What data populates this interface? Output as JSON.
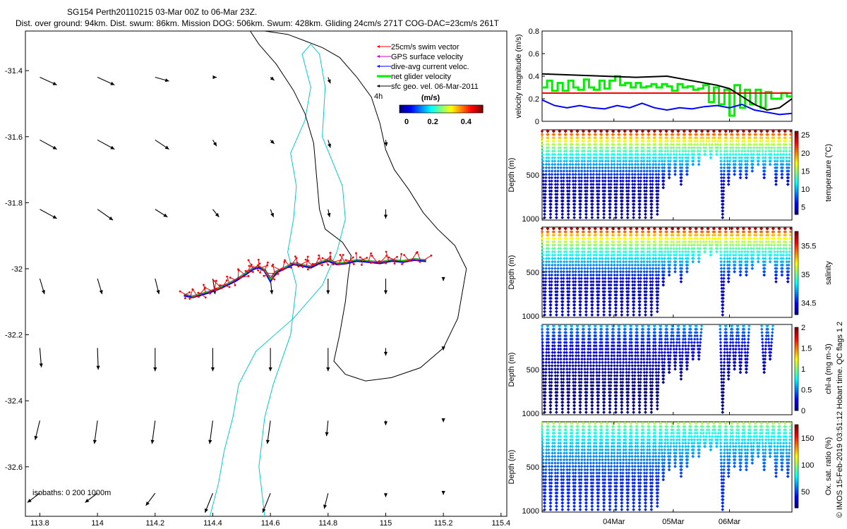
{
  "header": {
    "line1": "SG154 Perth20110215 03-Mar 00Z to 06-Mar 23Z.",
    "line2": "Dist. over ground: 94km. Dist. swum: 86km. Mission DOG: 506km. Swum: 428km. Gliding 24cm/s 271T COG-DAC=23cm/s 261T"
  },
  "credit": "© IMOS 15-Feb-2019 03:51:12 Hobart time. QC flags 1 2",
  "colors": {
    "swim": "#ff0000",
    "gps": "#cc00cc",
    "dac": "#0000ff",
    "net": "#00ee00",
    "geo": "#000000",
    "isobath_shelf": "#00cccc",
    "isobath_deep": "#000000",
    "line_magnitude_black": "#000000",
    "line_swim_red": "#ff0000"
  },
  "chart_data": [
    {
      "type": "scatter",
      "name": "track-map",
      "xlim": [
        113.75,
        115.42
      ],
      "ylim": [
        -32.75,
        -31.28
      ],
      "xticks": [
        113.8,
        114,
        114.2,
        114.4,
        114.6,
        114.8,
        115,
        115.2,
        115.4
      ],
      "xticklabels": [
        "113.8",
        "114",
        "114.2",
        "114.4",
        "114.6",
        "114.8",
        "115",
        "115.2",
        "115.4"
      ],
      "yticks": [
        -31.4,
        -31.6,
        -31.8,
        -32,
        -32.2,
        -32.4,
        -32.6
      ],
      "yticklabels": [
        "-31.4",
        "-31.6",
        "-31.8",
        "-32",
        "-32.2",
        "-32.4",
        "-32.6"
      ],
      "legend": {
        "placement": "top-right",
        "items": [
          "25cm/s swim vector",
          "GPS surface velocity",
          "dive-avg current veloc.",
          "net glider velocity",
          "sfc geo. vel. 06-Mar-2011"
        ],
        "extra_label": "4h"
      },
      "colorbar": {
        "title": "(m/s)",
        "range": [
          0,
          0.5
        ],
        "ticklabels": [
          "0",
          "0.2",
          "0.4"
        ]
      },
      "isobath_note": "isobaths: 0   200   1000m",
      "track": {
        "lon": [
          114.3,
          114.33,
          114.36,
          114.39,
          114.42,
          114.45,
          114.48,
          114.51,
          114.54,
          114.56,
          114.58,
          114.6,
          114.62,
          114.65,
          114.68,
          114.71,
          114.74,
          114.77,
          114.8,
          114.83,
          114.86,
          114.9,
          114.94,
          114.98,
          115.02,
          115.06,
          115.1,
          115.14
        ],
        "lat": [
          -32.08,
          -32.085,
          -32.078,
          -32.07,
          -32.06,
          -32.048,
          -32.035,
          -32.018,
          -32.0,
          -31.995,
          -32.005,
          -32.035,
          -32.01,
          -31.998,
          -31.985,
          -31.99,
          -31.995,
          -31.982,
          -31.975,
          -31.985,
          -31.983,
          -31.975,
          -31.978,
          -31.982,
          -31.975,
          -31.978,
          -31.972,
          -31.976
        ]
      },
      "geo_vectors": [
        {
          "lon": 113.8,
          "lat": -31.42,
          "u": 0.22,
          "v": -0.1
        },
        {
          "lon": 114.0,
          "lat": -31.42,
          "u": 0.22,
          "v": -0.1
        },
        {
          "lon": 114.2,
          "lat": -31.42,
          "u": 0.18,
          "v": -0.05
        },
        {
          "lon": 114.4,
          "lat": -31.42,
          "u": 0.05,
          "v": 0.0
        },
        {
          "lon": 114.6,
          "lat": -31.42,
          "u": 0.05,
          "v": -0.04
        },
        {
          "lon": 114.8,
          "lat": -31.42,
          "u": 0.03,
          "v": -0.08
        },
        {
          "lon": 113.8,
          "lat": -31.61,
          "u": 0.22,
          "v": -0.12
        },
        {
          "lon": 114.0,
          "lat": -31.61,
          "u": 0.22,
          "v": -0.12
        },
        {
          "lon": 114.2,
          "lat": -31.61,
          "u": 0.18,
          "v": -0.12
        },
        {
          "lon": 114.4,
          "lat": -31.61,
          "u": 0.05,
          "v": -0.08
        },
        {
          "lon": 114.6,
          "lat": -31.61,
          "u": 0.05,
          "v": -0.05
        },
        {
          "lon": 114.8,
          "lat": -31.61,
          "u": 0.03,
          "v": -0.1
        },
        {
          "lon": 115.0,
          "lat": -31.61,
          "u": 0.01,
          "v": -0.08
        },
        {
          "lon": 113.8,
          "lat": -31.82,
          "u": 0.22,
          "v": -0.12
        },
        {
          "lon": 114.0,
          "lat": -31.82,
          "u": 0.2,
          "v": -0.14
        },
        {
          "lon": 114.2,
          "lat": -31.82,
          "u": 0.16,
          "v": -0.1
        },
        {
          "lon": 114.4,
          "lat": -31.82,
          "u": 0.08,
          "v": -0.1
        },
        {
          "lon": 114.6,
          "lat": -31.82,
          "u": 0.04,
          "v": -0.1
        },
        {
          "lon": 114.8,
          "lat": -31.82,
          "u": 0.02,
          "v": -0.1
        },
        {
          "lon": 115.0,
          "lat": -31.82,
          "u": 0.0,
          "v": -0.12
        },
        {
          "lon": 113.8,
          "lat": -32.03,
          "u": 0.06,
          "v": -0.2
        },
        {
          "lon": 114.0,
          "lat": -32.03,
          "u": 0.06,
          "v": -0.2
        },
        {
          "lon": 114.2,
          "lat": -32.03,
          "u": 0.05,
          "v": -0.2
        },
        {
          "lon": 114.4,
          "lat": -32.03,
          "u": 0.03,
          "v": -0.2
        },
        {
          "lon": 114.6,
          "lat": -32.03,
          "u": 0.02,
          "v": -0.2
        },
        {
          "lon": 114.8,
          "lat": -32.03,
          "u": 0.0,
          "v": -0.2
        },
        {
          "lon": 115.0,
          "lat": -32.03,
          "u": 0.0,
          "v": -0.2
        },
        {
          "lon": 115.2,
          "lat": -32.03,
          "u": 0.0,
          "v": -0.03
        },
        {
          "lon": 113.8,
          "lat": -32.24,
          "u": 0.02,
          "v": -0.25
        },
        {
          "lon": 114.0,
          "lat": -32.24,
          "u": 0.01,
          "v": -0.28
        },
        {
          "lon": 114.2,
          "lat": -32.24,
          "u": 0.0,
          "v": -0.3
        },
        {
          "lon": 114.4,
          "lat": -32.24,
          "u": 0.0,
          "v": -0.3
        },
        {
          "lon": 114.6,
          "lat": -32.24,
          "u": 0.0,
          "v": -0.3
        },
        {
          "lon": 114.8,
          "lat": -32.24,
          "u": 0.0,
          "v": -0.3
        },
        {
          "lon": 115.0,
          "lat": -32.24,
          "u": 0.0,
          "v": -0.1
        },
        {
          "lon": 115.2,
          "lat": -32.24,
          "u": 0.0,
          "v": -0.03
        },
        {
          "lon": 113.8,
          "lat": -32.46,
          "u": -0.06,
          "v": -0.25
        },
        {
          "lon": 114.0,
          "lat": -32.46,
          "u": -0.04,
          "v": -0.3
        },
        {
          "lon": 114.2,
          "lat": -32.46,
          "u": -0.04,
          "v": -0.3
        },
        {
          "lon": 114.4,
          "lat": -32.46,
          "u": -0.04,
          "v": -0.3
        },
        {
          "lon": 114.6,
          "lat": -32.46,
          "u": -0.04,
          "v": -0.3
        },
        {
          "lon": 114.8,
          "lat": -32.46,
          "u": -0.02,
          "v": -0.2
        },
        {
          "lon": 115.0,
          "lat": -32.46,
          "u": 0.0,
          "v": -0.06
        },
        {
          "lon": 115.2,
          "lat": -32.46,
          "u": 0.0,
          "v": -0.02
        },
        {
          "lon": 113.8,
          "lat": -32.68,
          "u": -0.16,
          "v": -0.12
        },
        {
          "lon": 114.0,
          "lat": -32.68,
          "u": -0.16,
          "v": -0.12
        },
        {
          "lon": 114.2,
          "lat": -32.68,
          "u": -0.12,
          "v": -0.16
        },
        {
          "lon": 114.4,
          "lat": -32.68,
          "u": -0.1,
          "v": -0.25
        },
        {
          "lon": 114.6,
          "lat": -32.68,
          "u": -0.1,
          "v": -0.25
        },
        {
          "lon": 114.8,
          "lat": -32.68,
          "u": -0.05,
          "v": -0.2
        },
        {
          "lon": 115.0,
          "lat": -32.68,
          "u": 0.0,
          "v": -0.05
        },
        {
          "lon": 115.2,
          "lat": -32.68,
          "u": 0.0,
          "v": -0.02
        }
      ],
      "isobath_shelf": {
        "lon": [
          114.58,
          114.56,
          114.58,
          114.61,
          114.67,
          114.69,
          114.66,
          114.68,
          114.69,
          114.67,
          114.72,
          114.74,
          114.71,
          114.74,
          114.77,
          114.79,
          114.78,
          114.85,
          114.86,
          114.83,
          114.78,
          114.68,
          114.55,
          114.49,
          114.47,
          114.44,
          114.42,
          114.39
        ],
        "lat": [
          -32.75,
          -32.6,
          -32.45,
          -32.35,
          -32.2,
          -32.05,
          -31.95,
          -31.85,
          -31.75,
          -31.65,
          -31.55,
          -31.45,
          -31.35,
          -31.32,
          -31.35,
          -31.45,
          -31.6,
          -31.75,
          -31.85,
          -31.95,
          -32.05,
          -32.15,
          -32.25,
          -32.35,
          -32.45,
          -32.55,
          -32.65,
          -32.75
        ]
      },
      "isobath_deep": {
        "lon": [
          114.53,
          114.56,
          114.62,
          114.68,
          114.72,
          114.75,
          114.76,
          114.77,
          114.79,
          114.85,
          114.88,
          114.87,
          114.86,
          114.84,
          114.82,
          114.86,
          114.93,
          115.02,
          115.12,
          115.2,
          115.25,
          115.28,
          115.24,
          115.18,
          115.13,
          115.08,
          115.03,
          115.0,
          114.98,
          114.95,
          114.9,
          114.84,
          114.78,
          114.72,
          114.66,
          114.58,
          114.5
        ],
        "lat": [
          -31.28,
          -31.32,
          -31.38,
          -31.46,
          -31.53,
          -31.62,
          -31.72,
          -31.82,
          -31.88,
          -31.92,
          -31.96,
          -32.02,
          -32.1,
          -32.2,
          -32.28,
          -32.32,
          -32.34,
          -32.33,
          -32.3,
          -32.24,
          -32.15,
          -32.0,
          -31.93,
          -31.88,
          -31.83,
          -31.76,
          -31.7,
          -31.64,
          -31.56,
          -31.48,
          -31.42,
          -31.36,
          -31.33,
          -31.31,
          -31.29,
          -31.28,
          -31.28
        ]
      }
    },
    {
      "type": "line",
      "name": "velocity-magnitude",
      "ylabel": "velocity magnitude (m/s)",
      "ylim": [
        0,
        0.8
      ],
      "yticks": [
        0,
        0.2,
        0.4,
        0.6,
        0.8
      ],
      "yticklabels": [
        "0",
        "0.2",
        "0.4",
        "0.6",
        "0.8"
      ],
      "xlim": [
        0,
        4
      ],
      "series": [
        {
          "name": "net glider velocity",
          "color": "#00ee00",
          "x": [
            0.0,
            0.08,
            0.16,
            0.25,
            0.33,
            0.42,
            0.5,
            0.58,
            0.67,
            0.75,
            0.83,
            0.92,
            1.0,
            1.08,
            1.17,
            1.25,
            1.33,
            1.42,
            1.5,
            1.58,
            1.67,
            1.75,
            1.83,
            1.92,
            2.0,
            2.08,
            2.17,
            2.25,
            2.33,
            2.42,
            2.5,
            2.58,
            2.67,
            2.75,
            2.83,
            2.92,
            3.0,
            3.08,
            3.17,
            3.25,
            3.33,
            3.42,
            3.5,
            3.58,
            3.67,
            3.75,
            3.83,
            3.92,
            4.0
          ],
          "values": [
            0.3,
            0.36,
            0.27,
            0.34,
            0.27,
            0.36,
            0.3,
            0.28,
            0.37,
            0.3,
            0.28,
            0.36,
            0.29,
            0.36,
            0.4,
            0.32,
            0.34,
            0.3,
            0.34,
            0.3,
            0.31,
            0.33,
            0.3,
            0.33,
            0.31,
            0.27,
            0.33,
            0.3,
            0.31,
            0.28,
            0.29,
            0.32,
            0.17,
            0.3,
            0.15,
            0.28,
            0.05,
            0.32,
            0.12,
            0.28,
            0.15,
            0.28,
            0.12,
            0.26,
            0.2,
            0.2,
            0.25,
            0.22,
            0.24
          ]
        },
        {
          "name": "25cm/s swim vector",
          "color": "#ff0000",
          "x": [
            0,
            4
          ],
          "values": [
            0.25,
            0.25
          ]
        },
        {
          "name": "dive-avg current veloc.",
          "color": "#0000ff",
          "x": [
            0.0,
            0.2,
            0.4,
            0.6,
            0.8,
            1.0,
            1.2,
            1.4,
            1.6,
            1.8,
            2.0,
            2.2,
            2.4,
            2.6,
            2.8,
            3.0,
            3.2,
            3.4,
            3.6,
            3.8,
            4.0
          ],
          "values": [
            0.19,
            0.14,
            0.12,
            0.14,
            0.12,
            0.11,
            0.14,
            0.12,
            0.16,
            0.12,
            0.1,
            0.12,
            0.11,
            0.13,
            0.14,
            0.12,
            0.15,
            0.1,
            0.08,
            0.06,
            0.07
          ]
        },
        {
          "name": "sfc geo. vel.",
          "color": "#000000",
          "x": [
            0.0,
            0.5,
            1.0,
            1.5,
            2.0,
            2.3,
            2.6,
            2.8,
            3.0,
            3.2,
            3.4,
            3.6,
            3.8,
            4.0
          ],
          "values": [
            0.42,
            0.41,
            0.4,
            0.39,
            0.4,
            0.37,
            0.34,
            0.32,
            0.29,
            0.22,
            0.15,
            0.1,
            0.12,
            0.2
          ]
        }
      ]
    },
    {
      "type": "scatter",
      "name": "temperature-section",
      "ylabel": "Depth (m)",
      "yticks": [
        500,
        1000
      ],
      "yticklabels": [
        "500",
        "1000"
      ],
      "ylim": [
        0,
        1000
      ],
      "colorbar_label": "temperature (°C)",
      "colorbar_range": [
        3,
        26
      ],
      "colorbar_ticks": [
        5,
        10,
        15,
        20,
        25
      ],
      "colorbar_ticklabels": [
        "5",
        "10",
        "15",
        "20",
        "25"
      ],
      "surface_value": 25,
      "bottom_value": 4
    },
    {
      "type": "scatter",
      "name": "salinity-section",
      "ylabel": "Depth (m)",
      "yticks": [
        500,
        1000
      ],
      "yticklabels": [
        "500",
        "1000"
      ],
      "ylim": [
        0,
        1000
      ],
      "colorbar_label": "salinity",
      "colorbar_range": [
        34.3,
        35.75
      ],
      "colorbar_ticks": [
        34.5,
        35,
        35.5
      ],
      "colorbar_ticklabels": [
        "34.5",
        "35",
        "35.5"
      ],
      "surface_value": 35.7,
      "bottom_value": 34.4
    },
    {
      "type": "scatter",
      "name": "chla-section",
      "ylabel": "Depth (m)",
      "yticks": [
        500,
        1000
      ],
      "yticklabels": [
        "500",
        "1000"
      ],
      "ylim": [
        0,
        1000
      ],
      "colorbar_label": "chl-a (mg m-3)",
      "colorbar_range": [
        0,
        2
      ],
      "colorbar_ticks": [
        0,
        0.5,
        1,
        1.5,
        2
      ],
      "colorbar_ticklabels": [
        "0",
        "0.5",
        "1",
        "1.5",
        "2"
      ],
      "surface_value": 0.6,
      "bottom_value": 0.0
    },
    {
      "type": "scatter",
      "name": "oxygen-section",
      "ylabel": "Depth (m)",
      "yticks": [
        500,
        1000
      ],
      "yticklabels": [
        "500",
        "1000"
      ],
      "ylim": [
        0,
        1000
      ],
      "colorbar_label": "Ox. sat. ratio (%)",
      "colorbar_range": [
        20,
        175
      ],
      "colorbar_ticks": [
        50,
        100,
        150
      ],
      "colorbar_ticklabels": [
        "50",
        "100",
        "150"
      ],
      "surface_value": 105,
      "bottom_value": 45
    }
  ],
  "time_axis": {
    "range_days": [
      0,
      4
    ],
    "ticks": [
      1.15,
      2.1,
      3.0
    ],
    "ticklabels": [
      "04Mar",
      "05Mar",
      "06Mar"
    ]
  },
  "dives": {
    "start": [
      0.0,
      0.095,
      0.19,
      0.285,
      0.38,
      0.475,
      0.57,
      0.665,
      0.76,
      0.855,
      0.95,
      1.045,
      1.14,
      1.235,
      1.33,
      1.425,
      1.52,
      1.615,
      1.71,
      1.805,
      1.9,
      1.995,
      2.09,
      2.185,
      2.28,
      2.375,
      2.47,
      2.565,
      2.66,
      2.755,
      2.85,
      2.945,
      3.04,
      3.135,
      3.23,
      3.325,
      3.42,
      3.515,
      3.61,
      3.705,
      3.8,
      3.895
    ],
    "max_depth": [
      1000,
      1000,
      1000,
      1000,
      1000,
      1000,
      1000,
      1000,
      1000,
      1000,
      1000,
      1000,
      1000,
      1000,
      1000,
      1000,
      1000,
      1000,
      1000,
      950,
      680,
      560,
      500,
      620,
      520,
      400,
      380,
      300,
      320,
      280,
      1000,
      620,
      520,
      560,
      560,
      480,
      400,
      560,
      400,
      620,
      560,
      640
    ],
    "chla_visible": [
      true,
      true,
      true,
      true,
      true,
      true,
      true,
      true,
      true,
      true,
      true,
      true,
      true,
      true,
      true,
      true,
      true,
      true,
      true,
      true,
      true,
      true,
      true,
      true,
      true,
      true,
      true,
      false,
      false,
      false,
      true,
      true,
      true,
      true,
      true,
      false,
      false,
      true,
      true,
      false,
      false,
      false
    ]
  }
}
